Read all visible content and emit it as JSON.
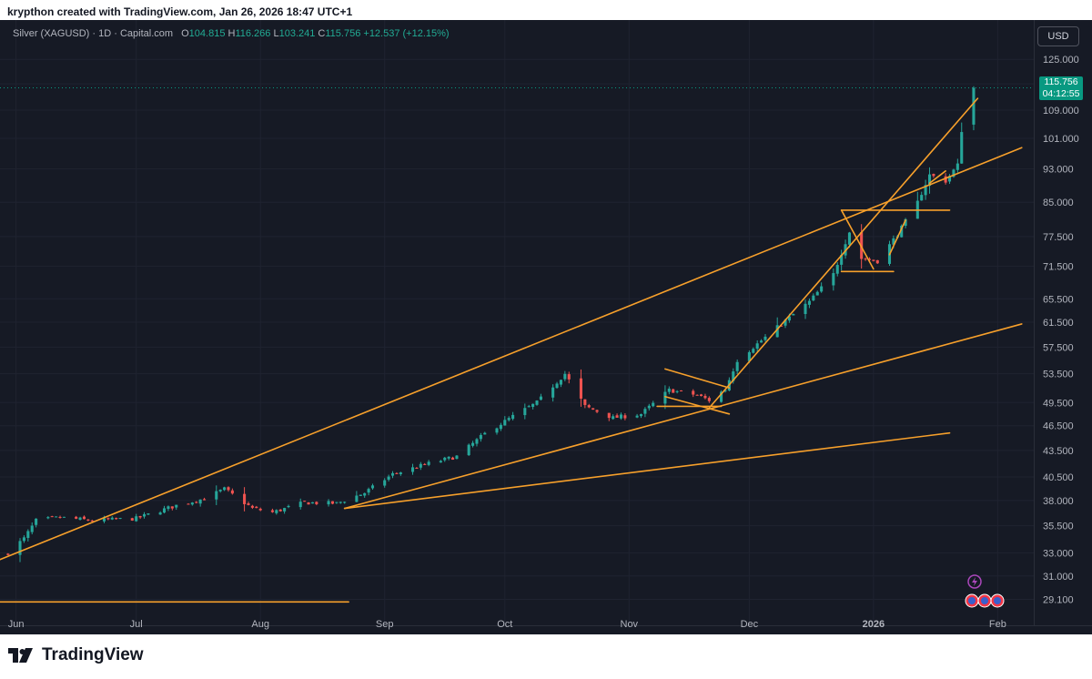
{
  "header": {
    "caption": "krypthon created with TradingView.com, Jan 26, 2026 18:47 UTC+1"
  },
  "legend": {
    "symbol": "Silver (XAGUSD) · 1D · Capital.com",
    "open_label": "O",
    "open": "104.815",
    "high_label": "H",
    "high": "116.266",
    "low_label": "L",
    "low": "103.241",
    "close_label": "C",
    "close": "115.756",
    "change": "+12.537 (+12.15%)"
  },
  "currency": "USD",
  "last_price": {
    "price": "115.756",
    "countdown": "04:12:55"
  },
  "footer": {
    "brand": "TradingView"
  },
  "colors": {
    "background": "#161a25",
    "up": "#26a69a",
    "down": "#ef5350",
    "trendline": "#f7a02b",
    "price_tag": "#089981"
  },
  "chart_data": {
    "type": "candlestick",
    "y_scale": "log",
    "ylim": [
      28.5,
      126
    ],
    "y_ticks": [
      "125.000",
      "117.000",
      "109.000",
      "101.000",
      "93.000",
      "85.000",
      "77.500",
      "71.500",
      "65.500",
      "61.500",
      "57.500",
      "53.500",
      "49.500",
      "46.500",
      "43.500",
      "40.500",
      "38.000",
      "35.500",
      "33.000",
      "31.000",
      "29.100"
    ],
    "x_ticks": [
      {
        "label": "Jun",
        "date": "2025-06-01"
      },
      {
        "label": "Jul",
        "date": "2025-07-01"
      },
      {
        "label": "Aug",
        "date": "2025-08-01"
      },
      {
        "label": "Sep",
        "date": "2025-09-01"
      },
      {
        "label": "Oct",
        "date": "2025-10-01"
      },
      {
        "label": "Nov",
        "date": "2025-11-01"
      },
      {
        "label": "Dec",
        "date": "2025-12-01"
      },
      {
        "label": "2026",
        "date": "2026-01-01"
      },
      {
        "label": "Feb",
        "date": "2026-02-01"
      }
    ],
    "xlim": [
      "2025-05-28",
      "2026-02-10"
    ],
    "price_anchors": [
      {
        "date": "2025-05-30",
        "price": 33.0
      },
      {
        "date": "2025-06-03",
        "price": 34.3
      },
      {
        "date": "2025-06-06",
        "price": 36.0
      },
      {
        "date": "2025-06-12",
        "price": 36.3
      },
      {
        "date": "2025-06-20",
        "price": 36.0
      },
      {
        "date": "2025-07-01",
        "price": 36.2
      },
      {
        "date": "2025-07-11",
        "price": 37.5
      },
      {
        "date": "2025-07-18",
        "price": 38.2
      },
      {
        "date": "2025-07-23",
        "price": 39.2
      },
      {
        "date": "2025-07-30",
        "price": 37.2
      },
      {
        "date": "2025-08-04",
        "price": 36.8
      },
      {
        "date": "2025-08-12",
        "price": 37.8
      },
      {
        "date": "2025-08-20",
        "price": 37.7
      },
      {
        "date": "2025-08-27",
        "price": 38.8
      },
      {
        "date": "2025-09-03",
        "price": 40.8
      },
      {
        "date": "2025-09-12",
        "price": 42.0
      },
      {
        "date": "2025-09-19",
        "price": 42.8
      },
      {
        "date": "2025-09-26",
        "price": 45.5
      },
      {
        "date": "2025-10-03",
        "price": 47.7
      },
      {
        "date": "2025-10-09",
        "price": 49.5
      },
      {
        "date": "2025-10-16",
        "price": 53.5
      },
      {
        "date": "2025-10-21",
        "price": 49.0
      },
      {
        "date": "2025-10-28",
        "price": 47.5
      },
      {
        "date": "2025-11-04",
        "price": 48.0
      },
      {
        "date": "2025-11-11",
        "price": 51.2
      },
      {
        "date": "2025-11-18",
        "price": 50.5
      },
      {
        "date": "2025-11-21",
        "price": 49.8
      },
      {
        "date": "2025-11-25",
        "price": 51.3
      },
      {
        "date": "2025-11-28",
        "price": 55.5
      },
      {
        "date": "2025-12-03",
        "price": 58.0
      },
      {
        "date": "2025-12-09",
        "price": 61.2
      },
      {
        "date": "2025-12-16",
        "price": 65.0
      },
      {
        "date": "2025-12-22",
        "price": 70.0
      },
      {
        "date": "2025-12-26",
        "price": 78.5
      },
      {
        "date": "2025-12-29",
        "price": 73.0
      },
      {
        "date": "2026-01-02",
        "price": 72.5
      },
      {
        "date": "2026-01-07",
        "price": 78.0
      },
      {
        "date": "2026-01-12",
        "price": 85.0
      },
      {
        "date": "2026-01-15",
        "price": 91.5
      },
      {
        "date": "2026-01-19",
        "price": 90.0
      },
      {
        "date": "2026-01-22",
        "price": 94.0
      },
      {
        "date": "2026-01-23",
        "price": 103.2
      },
      {
        "date": "2026-01-26",
        "price": 115.756
      }
    ],
    "trendlines": [
      {
        "start": [
          "2025-05-28",
          32.4
        ],
        "end": [
          "2026-02-07",
          98.5
        ]
      },
      {
        "start": [
          "2025-08-22",
          37.2
        ],
        "end": [
          "2026-02-07",
          61.2
        ]
      },
      {
        "start": [
          "2025-08-22",
          37.2
        ],
        "end": [
          "2026-01-20",
          45.6
        ]
      },
      {
        "start": [
          "2025-05-28",
          28.9
        ],
        "end": [
          "2025-08-23",
          28.9
        ]
      },
      {
        "start": [
          "2025-11-21",
          48.8
        ],
        "end": [
          "2026-01-27",
          112.5
        ]
      },
      {
        "start": [
          "2025-12-24",
          70.5
        ],
        "end": [
          "2026-01-06",
          70.5
        ]
      },
      {
        "start": [
          "2025-12-24",
          83.2
        ],
        "end": [
          "2026-01-20",
          83.2
        ]
      },
      {
        "start": [
          "2025-12-24",
          83.2
        ],
        "end": [
          "2026-01-01",
          71.0
        ]
      },
      {
        "start": [
          "2025-11-10",
          54.2
        ],
        "end": [
          "2025-11-26",
          51.5
        ]
      },
      {
        "start": [
          "2025-11-10",
          50.3
        ],
        "end": [
          "2025-11-26",
          48.0
        ]
      },
      {
        "start": [
          "2025-11-08",
          49.0
        ],
        "end": [
          "2025-11-24",
          49.0
        ]
      },
      {
        "start": [
          "2026-01-05",
          73.8
        ],
        "end": [
          "2026-01-09",
          81.0
        ]
      },
      {
        "start": [
          "2026-01-15",
          89.5
        ],
        "end": [
          "2026-01-19",
          92.5
        ]
      }
    ]
  }
}
